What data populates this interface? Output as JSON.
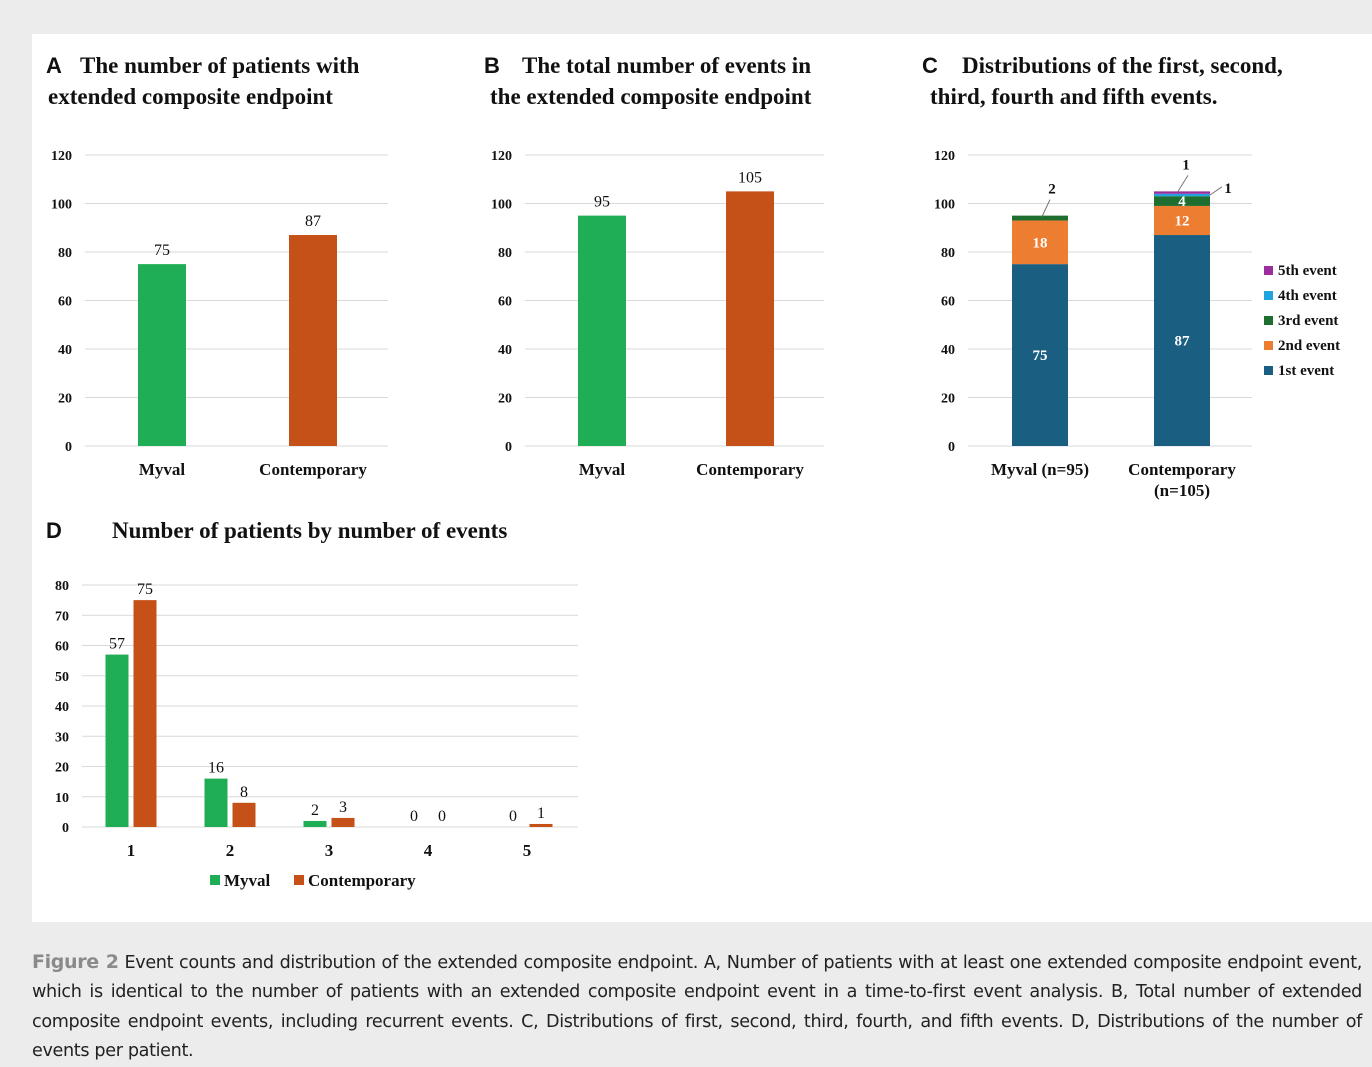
{
  "chart_data": [
    {
      "id": "A",
      "type": "bar",
      "letter": "A",
      "title_lines": [
        "The number of patients with",
        "extended composite endpoint"
      ],
      "categories": [
        "Myval",
        "Contemporary"
      ],
      "values": [
        75,
        87
      ],
      "colors": [
        "#1fae55",
        "#c55018"
      ],
      "ylim": [
        0,
        120
      ],
      "yticks": [
        0,
        20,
        40,
        60,
        80,
        100,
        120
      ],
      "grid": true
    },
    {
      "id": "B",
      "type": "bar",
      "letter": "B",
      "title_lines": [
        "The total number of events in",
        "the extended composite endpoint"
      ],
      "categories": [
        "Myval",
        "Contemporary"
      ],
      "values": [
        95,
        105
      ],
      "colors": [
        "#1fae55",
        "#c55018"
      ],
      "ylim": [
        0,
        120
      ],
      "yticks": [
        0,
        20,
        40,
        60,
        80,
        100,
        120
      ],
      "grid": true
    },
    {
      "id": "C",
      "type": "bar",
      "stacked": true,
      "letter": "C",
      "title_lines": [
        "Distributions of the first, second,",
        "third, fourth and fifth events."
      ],
      "categories": [
        [
          "Myval (n=95)"
        ],
        [
          "Contemporary",
          "(n=105)"
        ]
      ],
      "series": [
        {
          "name": "1st event",
          "color": "#1a5e82",
          "values": [
            75,
            87
          ]
        },
        {
          "name": "2nd event",
          "color": "#ed7d31",
          "values": [
            18,
            12
          ]
        },
        {
          "name": "3rd event",
          "color": "#1e6e30",
          "values": [
            2,
            4
          ]
        },
        {
          "name": "4th event",
          "color": "#21a3dd",
          "values": [
            0,
            1
          ]
        },
        {
          "name": "5th event",
          "color": "#9b2d9c",
          "values": [
            0,
            1
          ]
        }
      ],
      "ylim": [
        0,
        120
      ],
      "yticks": [
        0,
        20,
        40,
        60,
        80,
        100,
        120
      ],
      "grid": true,
      "legend_position": "right"
    },
    {
      "id": "D",
      "type": "bar",
      "letter": "D",
      "title_lines": [
        "Number of patients by number of events"
      ],
      "categories": [
        "1",
        "2",
        "3",
        "4",
        "5"
      ],
      "series": [
        {
          "name": "Myval",
          "color": "#1fae55",
          "values": [
            57,
            16,
            2,
            0,
            0
          ]
        },
        {
          "name": "Contemporary",
          "color": "#c55018",
          "values": [
            75,
            8,
            3,
            0,
            1
          ]
        }
      ],
      "ylim": [
        0,
        80
      ],
      "yticks": [
        0,
        10,
        20,
        30,
        40,
        50,
        60,
        70,
        80
      ],
      "grid": true,
      "legend_position": "bottom"
    }
  ],
  "caption": {
    "label": "Figure 2",
    "text": "Event counts and distribution of the extended composite endpoint. A, Number of patients with at least one extended composite endpoint event, which is identical to the number of patients with an extended composite endpoint event in a time-to-first event analysis. B, Total number of extended composite endpoint events, including recurrent events. C, Distributions of first, second, third, fourth, and fifth events. D, Distributions of the number of events per patient."
  }
}
